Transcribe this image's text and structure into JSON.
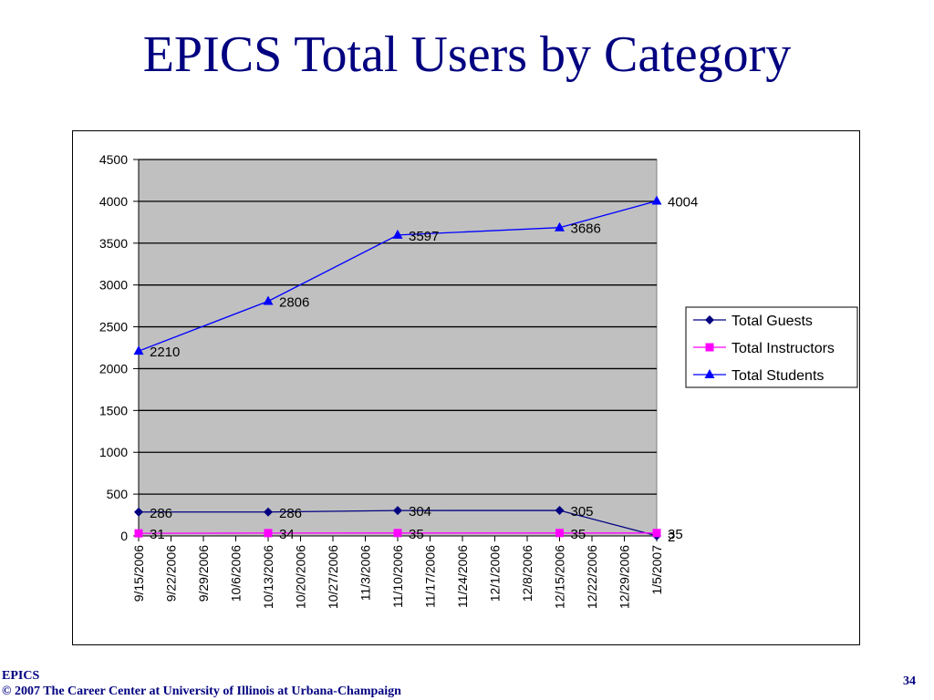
{
  "slide": {
    "title": "EPICS Total Users by Category",
    "footer_line1": "EPICS",
    "footer_line2": "© 2007 The Career Center at University of Illinois at Urbana-Champaign",
    "page_number": "34"
  },
  "chart_data": {
    "type": "line",
    "title": "",
    "xlabel": "",
    "ylabel": "",
    "ylim": [
      0,
      4500
    ],
    "yticks": [
      0,
      500,
      1000,
      1500,
      2000,
      2500,
      3000,
      3500,
      4000,
      4500
    ],
    "grid": "horizontal",
    "plot_background": "#c0c0c0",
    "legend_position": "right",
    "categories": [
      "9/15/2006",
      "9/22/2006",
      "9/29/2006",
      "10/6/2006",
      "10/13/2006",
      "10/20/2006",
      "10/27/2006",
      "11/3/2006",
      "11/10/2006",
      "11/17/2006",
      "11/24/2006",
      "12/1/2006",
      "12/8/2006",
      "12/15/2006",
      "12/22/2006",
      "12/29/2006",
      "1/5/2007"
    ],
    "series": [
      {
        "name": "Total Guests",
        "color": "#000080",
        "marker": "diamond",
        "points": [
          {
            "x": "9/15/2006",
            "y": 286
          },
          {
            "x": "10/13/2006",
            "y": 286
          },
          {
            "x": "11/10/2006",
            "y": 304
          },
          {
            "x": "12/15/2006",
            "y": 305
          },
          {
            "x": "1/5/2007",
            "y": 2
          }
        ]
      },
      {
        "name": "Total Instructors",
        "color": "#ff00ff",
        "marker": "square",
        "points": [
          {
            "x": "9/15/2006",
            "y": 31
          },
          {
            "x": "10/13/2006",
            "y": 34
          },
          {
            "x": "11/10/2006",
            "y": 35
          },
          {
            "x": "12/15/2006",
            "y": 35
          },
          {
            "x": "1/5/2007",
            "y": 35
          }
        ]
      },
      {
        "name": "Total Students",
        "color": "#0000ff",
        "marker": "triangle",
        "points": [
          {
            "x": "9/15/2006",
            "y": 2210
          },
          {
            "x": "10/13/2006",
            "y": 2806
          },
          {
            "x": "11/10/2006",
            "y": 3597
          },
          {
            "x": "12/15/2006",
            "y": 3686
          },
          {
            "x": "1/5/2007",
            "y": 4004
          }
        ]
      }
    ]
  }
}
